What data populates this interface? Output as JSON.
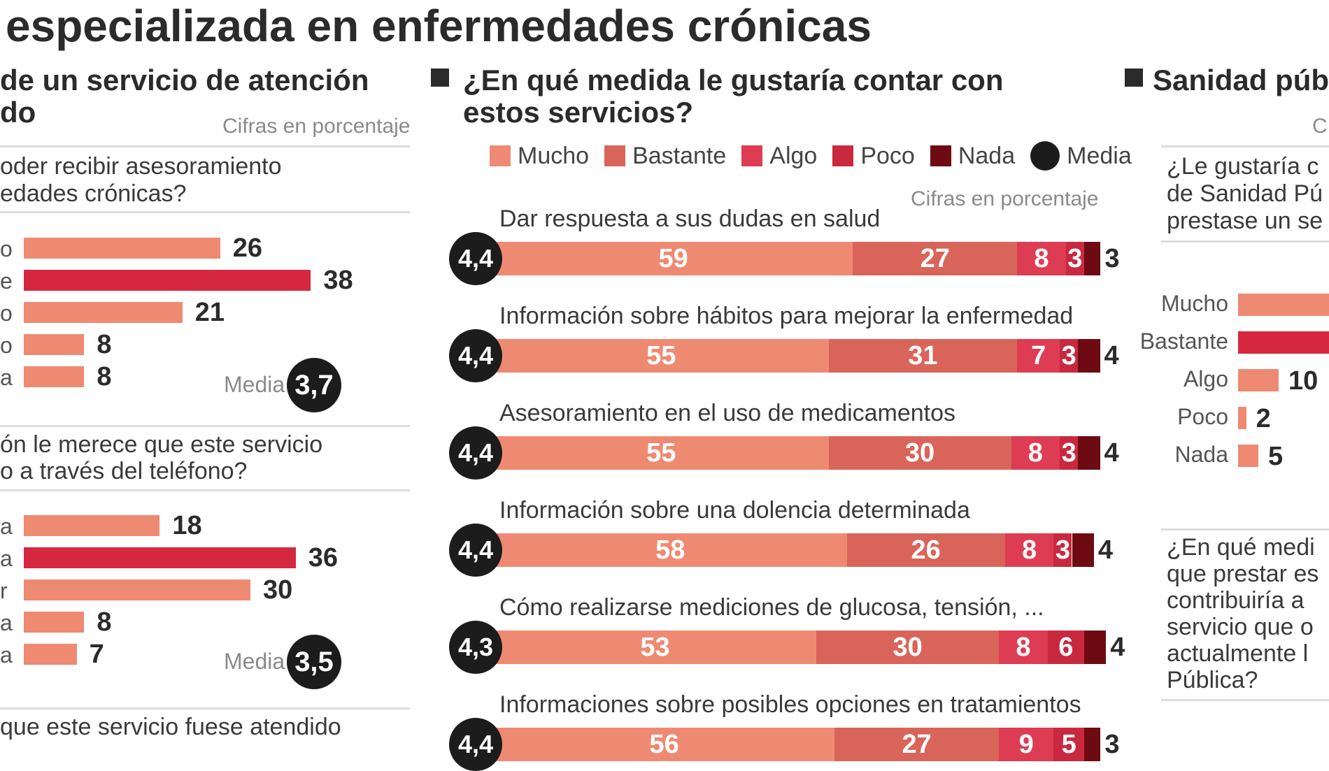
{
  "headline": "especializada en enfermedades crónicas",
  "colors": {
    "mucho": "#ef8a72",
    "bastante": "#d9655a",
    "algo": "#de3c52",
    "poco": "#c9293f",
    "nada": "#6e0a12",
    "highlight": "#d5283f",
    "bar_light": "#ef8a72",
    "media": "#1c1c1c"
  },
  "left": {
    "title_line1": "de un servicio de atención",
    "title_line2": "do",
    "cifras": "Cifras en porcentaje",
    "q1_line1": "oder recibir asesoramiento",
    "q1_line2": "edades crónicas?",
    "q2_line1": "ón le merece que este servicio",
    "q2_line2": "o a través del teléfono?",
    "q3_line1": "que este servicio fuese atendido",
    "media_label": "Media"
  },
  "middle": {
    "title_line1": "¿En qué medida le gustaría contar con",
    "title_line2": "estos servicios?",
    "cifras": "Cifras en porcentaje",
    "legend": [
      "Mucho",
      "Bastante",
      "Algo",
      "Poco",
      "Nada",
      "Media"
    ]
  },
  "right": {
    "title": "Sanidad púb",
    "cifras": "C",
    "q1_line1": "¿Le gustaría c",
    "q1_line2": "de Sanidad Pú",
    "q1_line3": "prestase un se",
    "q2_line1": "¿En qué medi",
    "q2_line2": "que prestar es",
    "q2_line3": "contribuiría a",
    "q2_line4": "servicio que o",
    "q2_line5": "actualmente l",
    "q2_line6": "Pública?"
  },
  "chart_data": [
    {
      "type": "bar",
      "orientation": "horizontal",
      "categories": [
        "o",
        "e",
        "o",
        "o",
        "a"
      ],
      "values": [
        26,
        38,
        21,
        8,
        8
      ],
      "highlight_index": 1,
      "media": "3,7"
    },
    {
      "type": "bar",
      "orientation": "horizontal",
      "categories": [
        "a",
        "a",
        "r",
        "a",
        "a"
      ],
      "values": [
        18,
        36,
        30,
        8,
        7
      ],
      "highlight_index": 1,
      "media": "3,5"
    },
    {
      "type": "bar",
      "orientation": "horizontal-stacked",
      "series": [
        {
          "name": "Mucho"
        },
        {
          "name": "Bastante"
        },
        {
          "name": "Algo"
        },
        {
          "name": "Poco"
        },
        {
          "name": "Nada"
        }
      ],
      "rows": [
        {
          "label": "Dar respuesta a sus dudas en salud",
          "media": "4,4",
          "values": [
            59,
            27,
            8,
            3,
            3
          ]
        },
        {
          "label": "Información sobre hábitos para mejorar la enfermedad",
          "media": "4,4",
          "values": [
            55,
            31,
            7,
            3,
            4
          ]
        },
        {
          "label": "Asesoramiento en el uso de medicamentos",
          "media": "4,4",
          "values": [
            55,
            30,
            8,
            3,
            4
          ]
        },
        {
          "label": "Información sobre una dolencia determinada",
          "media": "4,4",
          "values": [
            58,
            26,
            8,
            3,
            4
          ]
        },
        {
          "label": "Cómo realizarse mediciones de glucosa, tensión, ...",
          "media": "4,3",
          "values": [
            53,
            30,
            8,
            6,
            4
          ]
        },
        {
          "label": "Informaciones sobre posibles opciones en tratamientos",
          "media": "4,4",
          "values": [
            56,
            27,
            9,
            5,
            3
          ]
        }
      ]
    },
    {
      "type": "bar",
      "orientation": "horizontal",
      "categories": [
        "Mucho",
        "Bastante",
        "Algo",
        "Poco",
        "Nada"
      ],
      "values": [
        null,
        null,
        10,
        2,
        5
      ],
      "value_labels": [
        "",
        "",
        "10",
        "2",
        "5"
      ],
      "highlight_index": 1
    }
  ]
}
